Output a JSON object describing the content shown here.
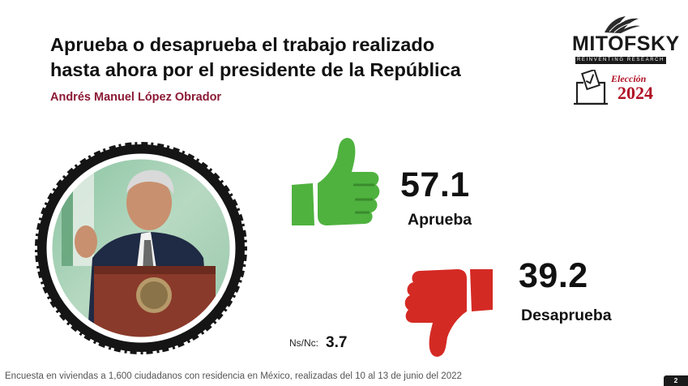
{
  "header": {
    "title_line1": "Aprueba o desaprueba el trabajo realizado",
    "title_line2": "hasta ahora por el presidente de la República",
    "subtitle": "Andrés Manuel López Obrador"
  },
  "logo": {
    "name": "MITOFSKY",
    "tagline": "REINVENTING RESEARCH",
    "eleccion_label": "Elección",
    "eleccion_year": "2024",
    "icon": "ballot-box-icon"
  },
  "portrait": {
    "icon": "president-portrait-photo"
  },
  "chart_data": {
    "type": "bar",
    "categories": [
      "Aprueba",
      "Desaprueba",
      "Ns/Nc:"
    ],
    "values": [
      57.1,
      39.2,
      3.7
    ],
    "value_labels": [
      "57.1",
      "39.2",
      "3.7"
    ],
    "colors": {
      "Aprueba": "#4fb23f",
      "Desaprueba": "#d42a24"
    }
  },
  "footer": {
    "note": "Encuesta en viviendas a 1,600 ciudadanos con residencia en México, realizadas del 10 al 13 de junio del 2022",
    "page": "2"
  }
}
